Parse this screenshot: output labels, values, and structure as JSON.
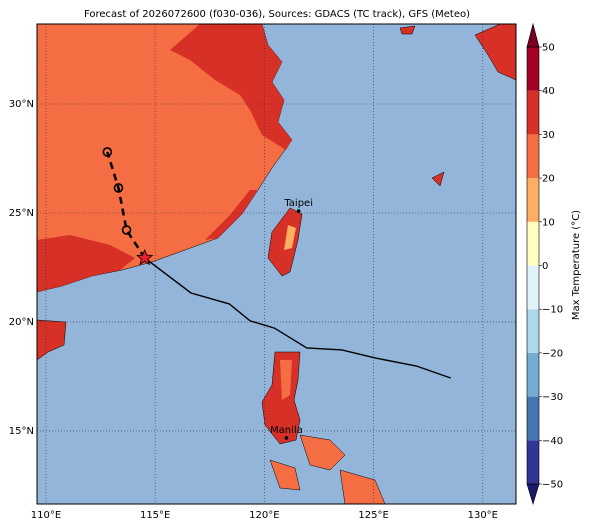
{
  "chart_data": {
    "type": "map",
    "title": "Forecast of 2026072600 (f030-036), Sources: GDACS (TC track), GFS (Meteo)",
    "xlim": [
      109.59,
      131.52
    ],
    "ylim": [
      11.65,
      33.67
    ],
    "xticks": [
      {
        "value": 110,
        "label": "110°E"
      },
      {
        "value": 115,
        "label": "115°E"
      },
      {
        "value": 120,
        "label": "120°E"
      },
      {
        "value": 125,
        "label": "125°E"
      },
      {
        "value": 130,
        "label": "130°E"
      }
    ],
    "yticks": [
      {
        "value": 15,
        "label": "15°N"
      },
      {
        "value": 20,
        "label": "20°N"
      },
      {
        "value": 25,
        "label": "25°N"
      },
      {
        "value": 30,
        "label": "30°N"
      }
    ],
    "grid": true,
    "track": {
      "color": "#000000",
      "lon": [
        114.52,
        116.64,
        118.39,
        119.35,
        120.46,
        121.94,
        123.55,
        125.07,
        126.96,
        128.53
      ],
      "lat": [
        22.94,
        21.33,
        20.83,
        20.05,
        19.72,
        18.81,
        18.72,
        18.35,
        17.98,
        17.43
      ]
    },
    "forecast": {
      "color": "#000000",
      "lon": [
        114.52,
        113.69,
        113.32,
        112.81
      ],
      "lat": [
        22.94,
        24.22,
        26.15,
        27.8
      ]
    },
    "cities": [
      {
        "name": "Taipei",
        "lon": 121.57,
        "lat": 25.09
      },
      {
        "name": "Manila",
        "lon": 121.01,
        "lat": 14.68
      }
    ],
    "colorbar": {
      "label": "Max Temperature (°C)",
      "ticks": [
        {
          "value": -50,
          "label": "−50"
        },
        {
          "value": -40,
          "label": "−40"
        },
        {
          "value": -30,
          "label": "−30"
        },
        {
          "value": -20,
          "label": "−20"
        },
        {
          "value": -10,
          "label": "−10"
        },
        0,
        10,
        20,
        30,
        40,
        50
      ],
      "colors": [
        "#313695",
        "#4575b4",
        "#74add1",
        "#abd9e9",
        "#e0f3f8",
        "#ffffbf",
        "#fdae61",
        "#f46d43",
        "#d73027",
        "#a50026"
      ],
      "under": "#1b1b6b",
      "over": "#7a0022"
    }
  }
}
